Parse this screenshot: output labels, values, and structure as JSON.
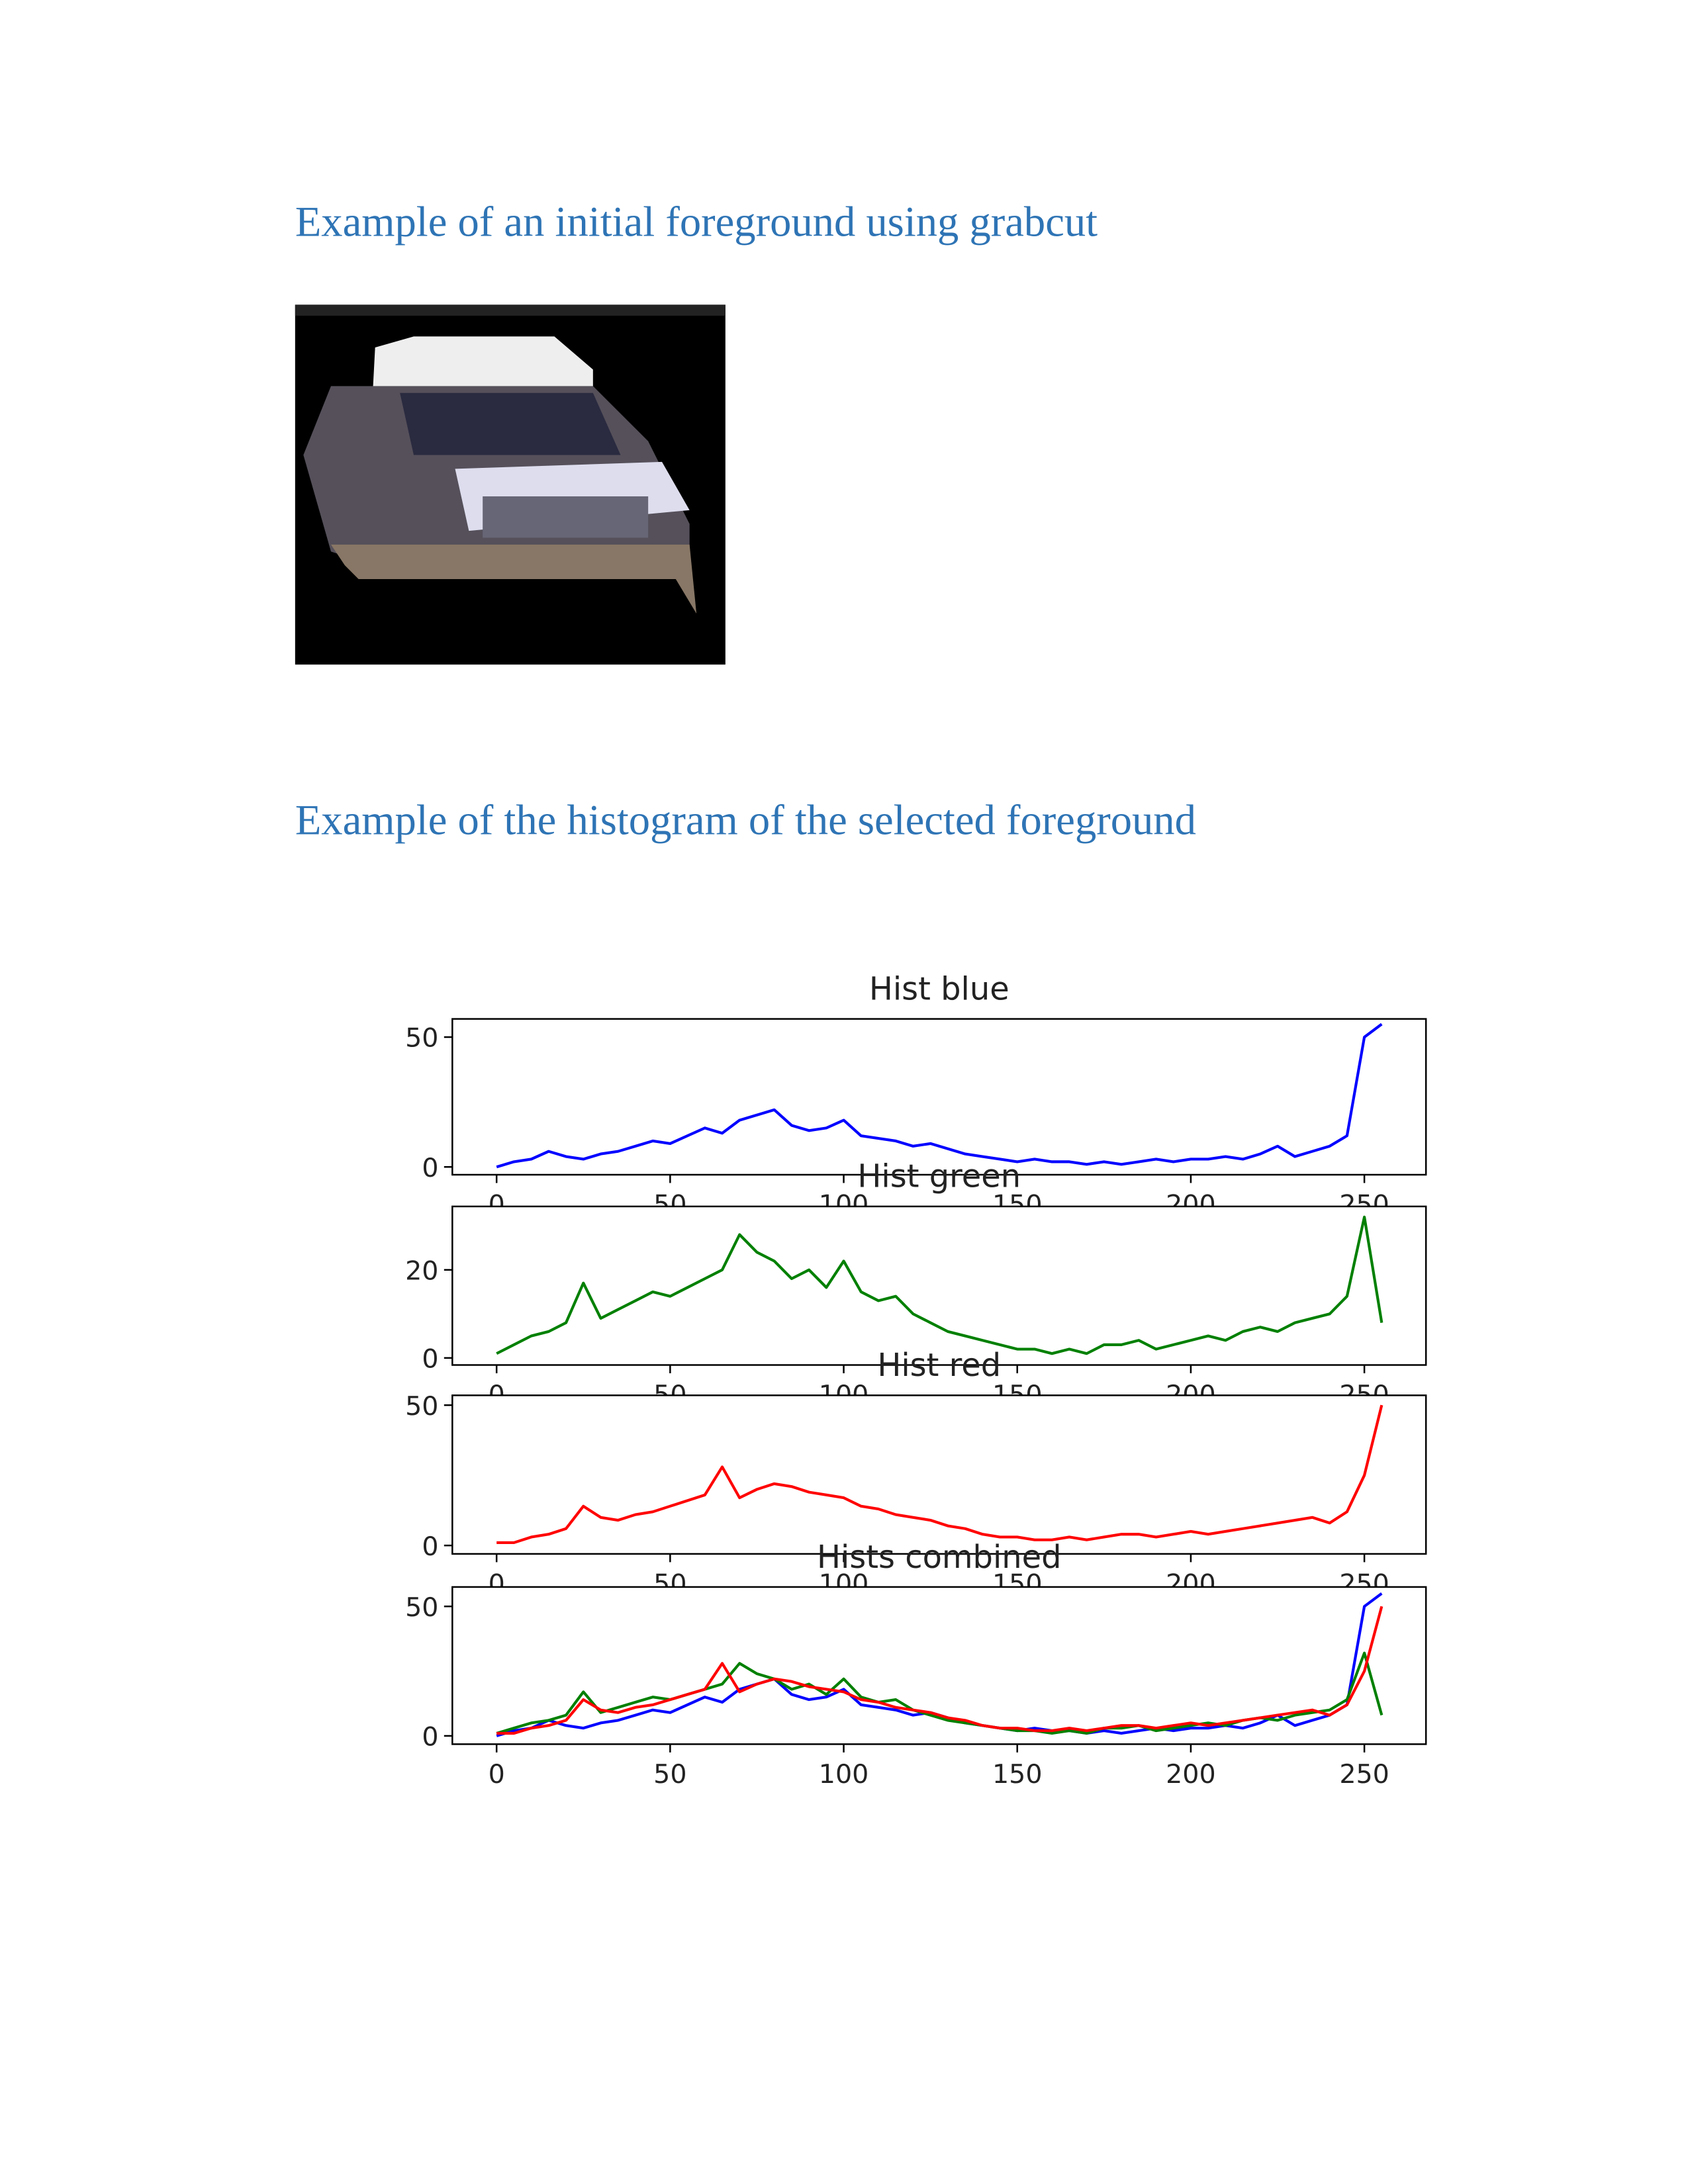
{
  "headings": [
    "Example of an initial foreground using grabcut",
    "Example of the histogram of the selected foreground"
  ],
  "chart_data": [
    {
      "type": "line",
      "title": "Hist blue",
      "x": [
        0,
        5,
        10,
        15,
        20,
        25,
        30,
        35,
        40,
        45,
        50,
        55,
        60,
        65,
        70,
        75,
        80,
        85,
        90,
        95,
        100,
        105,
        110,
        115,
        120,
        125,
        130,
        135,
        140,
        145,
        150,
        155,
        160,
        165,
        170,
        175,
        180,
        185,
        190,
        195,
        200,
        205,
        210,
        215,
        220,
        225,
        230,
        235,
        240,
        245,
        250,
        255
      ],
      "series": [
        {
          "color": "#0000ff",
          "values": [
            0,
            2,
            3,
            6,
            4,
            3,
            5,
            6,
            8,
            10,
            9,
            12,
            15,
            13,
            18,
            20,
            22,
            16,
            14,
            15,
            18,
            12,
            11,
            10,
            8,
            9,
            7,
            5,
            4,
            3,
            2,
            3,
            2,
            2,
            1,
            2,
            1,
            2,
            3,
            2,
            3,
            3,
            4,
            3,
            5,
            8,
            4,
            6,
            8,
            12,
            50,
            55
          ]
        }
      ],
      "xlim": [
        -12.75,
        267.75
      ],
      "ylim": [
        -3,
        57
      ],
      "xticks": [
        0,
        50,
        100,
        150,
        200,
        250
      ],
      "yticks": [
        0,
        50
      ]
    },
    {
      "type": "line",
      "title": "Hist green",
      "x": [
        0,
        5,
        10,
        15,
        20,
        25,
        30,
        35,
        40,
        45,
        50,
        55,
        60,
        65,
        70,
        75,
        80,
        85,
        90,
        95,
        100,
        105,
        110,
        115,
        120,
        125,
        130,
        135,
        140,
        145,
        150,
        155,
        160,
        165,
        170,
        175,
        180,
        185,
        190,
        195,
        200,
        205,
        210,
        215,
        220,
        225,
        230,
        235,
        240,
        245,
        250,
        255
      ],
      "series": [
        {
          "color": "#008000",
          "values": [
            1,
            3,
            5,
            6,
            8,
            17,
            9,
            11,
            13,
            15,
            14,
            16,
            18,
            20,
            28,
            24,
            22,
            18,
            20,
            16,
            22,
            15,
            13,
            14,
            10,
            8,
            6,
            5,
            4,
            3,
            2,
            2,
            1,
            2,
            1,
            3,
            3,
            4,
            2,
            3,
            4,
            5,
            4,
            6,
            7,
            6,
            8,
            9,
            10,
            14,
            32,
            8
          ]
        }
      ],
      "xlim": [
        -12.75,
        267.75
      ],
      "ylim": [
        -1.6,
        34.4
      ],
      "xticks": [
        0,
        50,
        100,
        150,
        200,
        250
      ],
      "yticks": [
        0,
        20
      ]
    },
    {
      "type": "line",
      "title": "Hist red",
      "x": [
        0,
        5,
        10,
        15,
        20,
        25,
        30,
        35,
        40,
        45,
        50,
        55,
        60,
        65,
        70,
        75,
        80,
        85,
        90,
        95,
        100,
        105,
        110,
        115,
        120,
        125,
        130,
        135,
        140,
        145,
        150,
        155,
        160,
        165,
        170,
        175,
        180,
        185,
        190,
        195,
        200,
        205,
        210,
        215,
        220,
        225,
        230,
        235,
        240,
        245,
        250,
        255
      ],
      "series": [
        {
          "color": "#ff0000",
          "values": [
            1,
            1,
            3,
            4,
            6,
            14,
            10,
            9,
            11,
            12,
            14,
            16,
            18,
            28,
            17,
            20,
            22,
            21,
            19,
            18,
            17,
            14,
            13,
            11,
            10,
            9,
            7,
            6,
            4,
            3,
            3,
            2,
            2,
            3,
            2,
            3,
            4,
            4,
            3,
            4,
            5,
            4,
            5,
            6,
            7,
            8,
            9,
            10,
            8,
            12,
            25,
            50
          ]
        }
      ],
      "xlim": [
        -12.75,
        267.75
      ],
      "ylim": [
        -3,
        53.5
      ],
      "xticks": [
        0,
        50,
        100,
        150,
        200,
        250
      ],
      "yticks": [
        0,
        50
      ]
    },
    {
      "type": "line",
      "title": "Hists combined",
      "x": [
        0,
        5,
        10,
        15,
        20,
        25,
        30,
        35,
        40,
        45,
        50,
        55,
        60,
        65,
        70,
        75,
        80,
        85,
        90,
        95,
        100,
        105,
        110,
        115,
        120,
        125,
        130,
        135,
        140,
        145,
        150,
        155,
        160,
        165,
        170,
        175,
        180,
        185,
        190,
        195,
        200,
        205,
        210,
        215,
        220,
        225,
        230,
        235,
        240,
        245,
        250,
        255
      ],
      "series": [
        {
          "color": "#0000ff",
          "values": [
            0,
            2,
            3,
            6,
            4,
            3,
            5,
            6,
            8,
            10,
            9,
            12,
            15,
            13,
            18,
            20,
            22,
            16,
            14,
            15,
            18,
            12,
            11,
            10,
            8,
            9,
            7,
            5,
            4,
            3,
            2,
            3,
            2,
            2,
            1,
            2,
            1,
            2,
            3,
            2,
            3,
            3,
            4,
            3,
            5,
            8,
            4,
            6,
            8,
            12,
            50,
            55
          ]
        },
        {
          "color": "#008000",
          "values": [
            1,
            3,
            5,
            6,
            8,
            17,
            9,
            11,
            13,
            15,
            14,
            16,
            18,
            20,
            28,
            24,
            22,
            18,
            20,
            16,
            22,
            15,
            13,
            14,
            10,
            8,
            6,
            5,
            4,
            3,
            2,
            2,
            1,
            2,
            1,
            3,
            3,
            4,
            2,
            3,
            4,
            5,
            4,
            6,
            7,
            6,
            8,
            9,
            10,
            14,
            32,
            8
          ]
        },
        {
          "color": "#ff0000",
          "values": [
            1,
            1,
            3,
            4,
            6,
            14,
            10,
            9,
            11,
            12,
            14,
            16,
            18,
            28,
            17,
            20,
            22,
            21,
            19,
            18,
            17,
            14,
            13,
            11,
            10,
            9,
            7,
            6,
            4,
            3,
            3,
            2,
            2,
            3,
            2,
            3,
            4,
            4,
            3,
            4,
            5,
            4,
            5,
            6,
            7,
            8,
            9,
            10,
            8,
            12,
            25,
            50
          ]
        }
      ],
      "xlim": [
        -12.75,
        267.75
      ],
      "ylim": [
        -3.2,
        57.5
      ],
      "xticks": [
        0,
        50,
        100,
        150,
        200,
        250
      ],
      "yticks": [
        0,
        50
      ]
    }
  ]
}
